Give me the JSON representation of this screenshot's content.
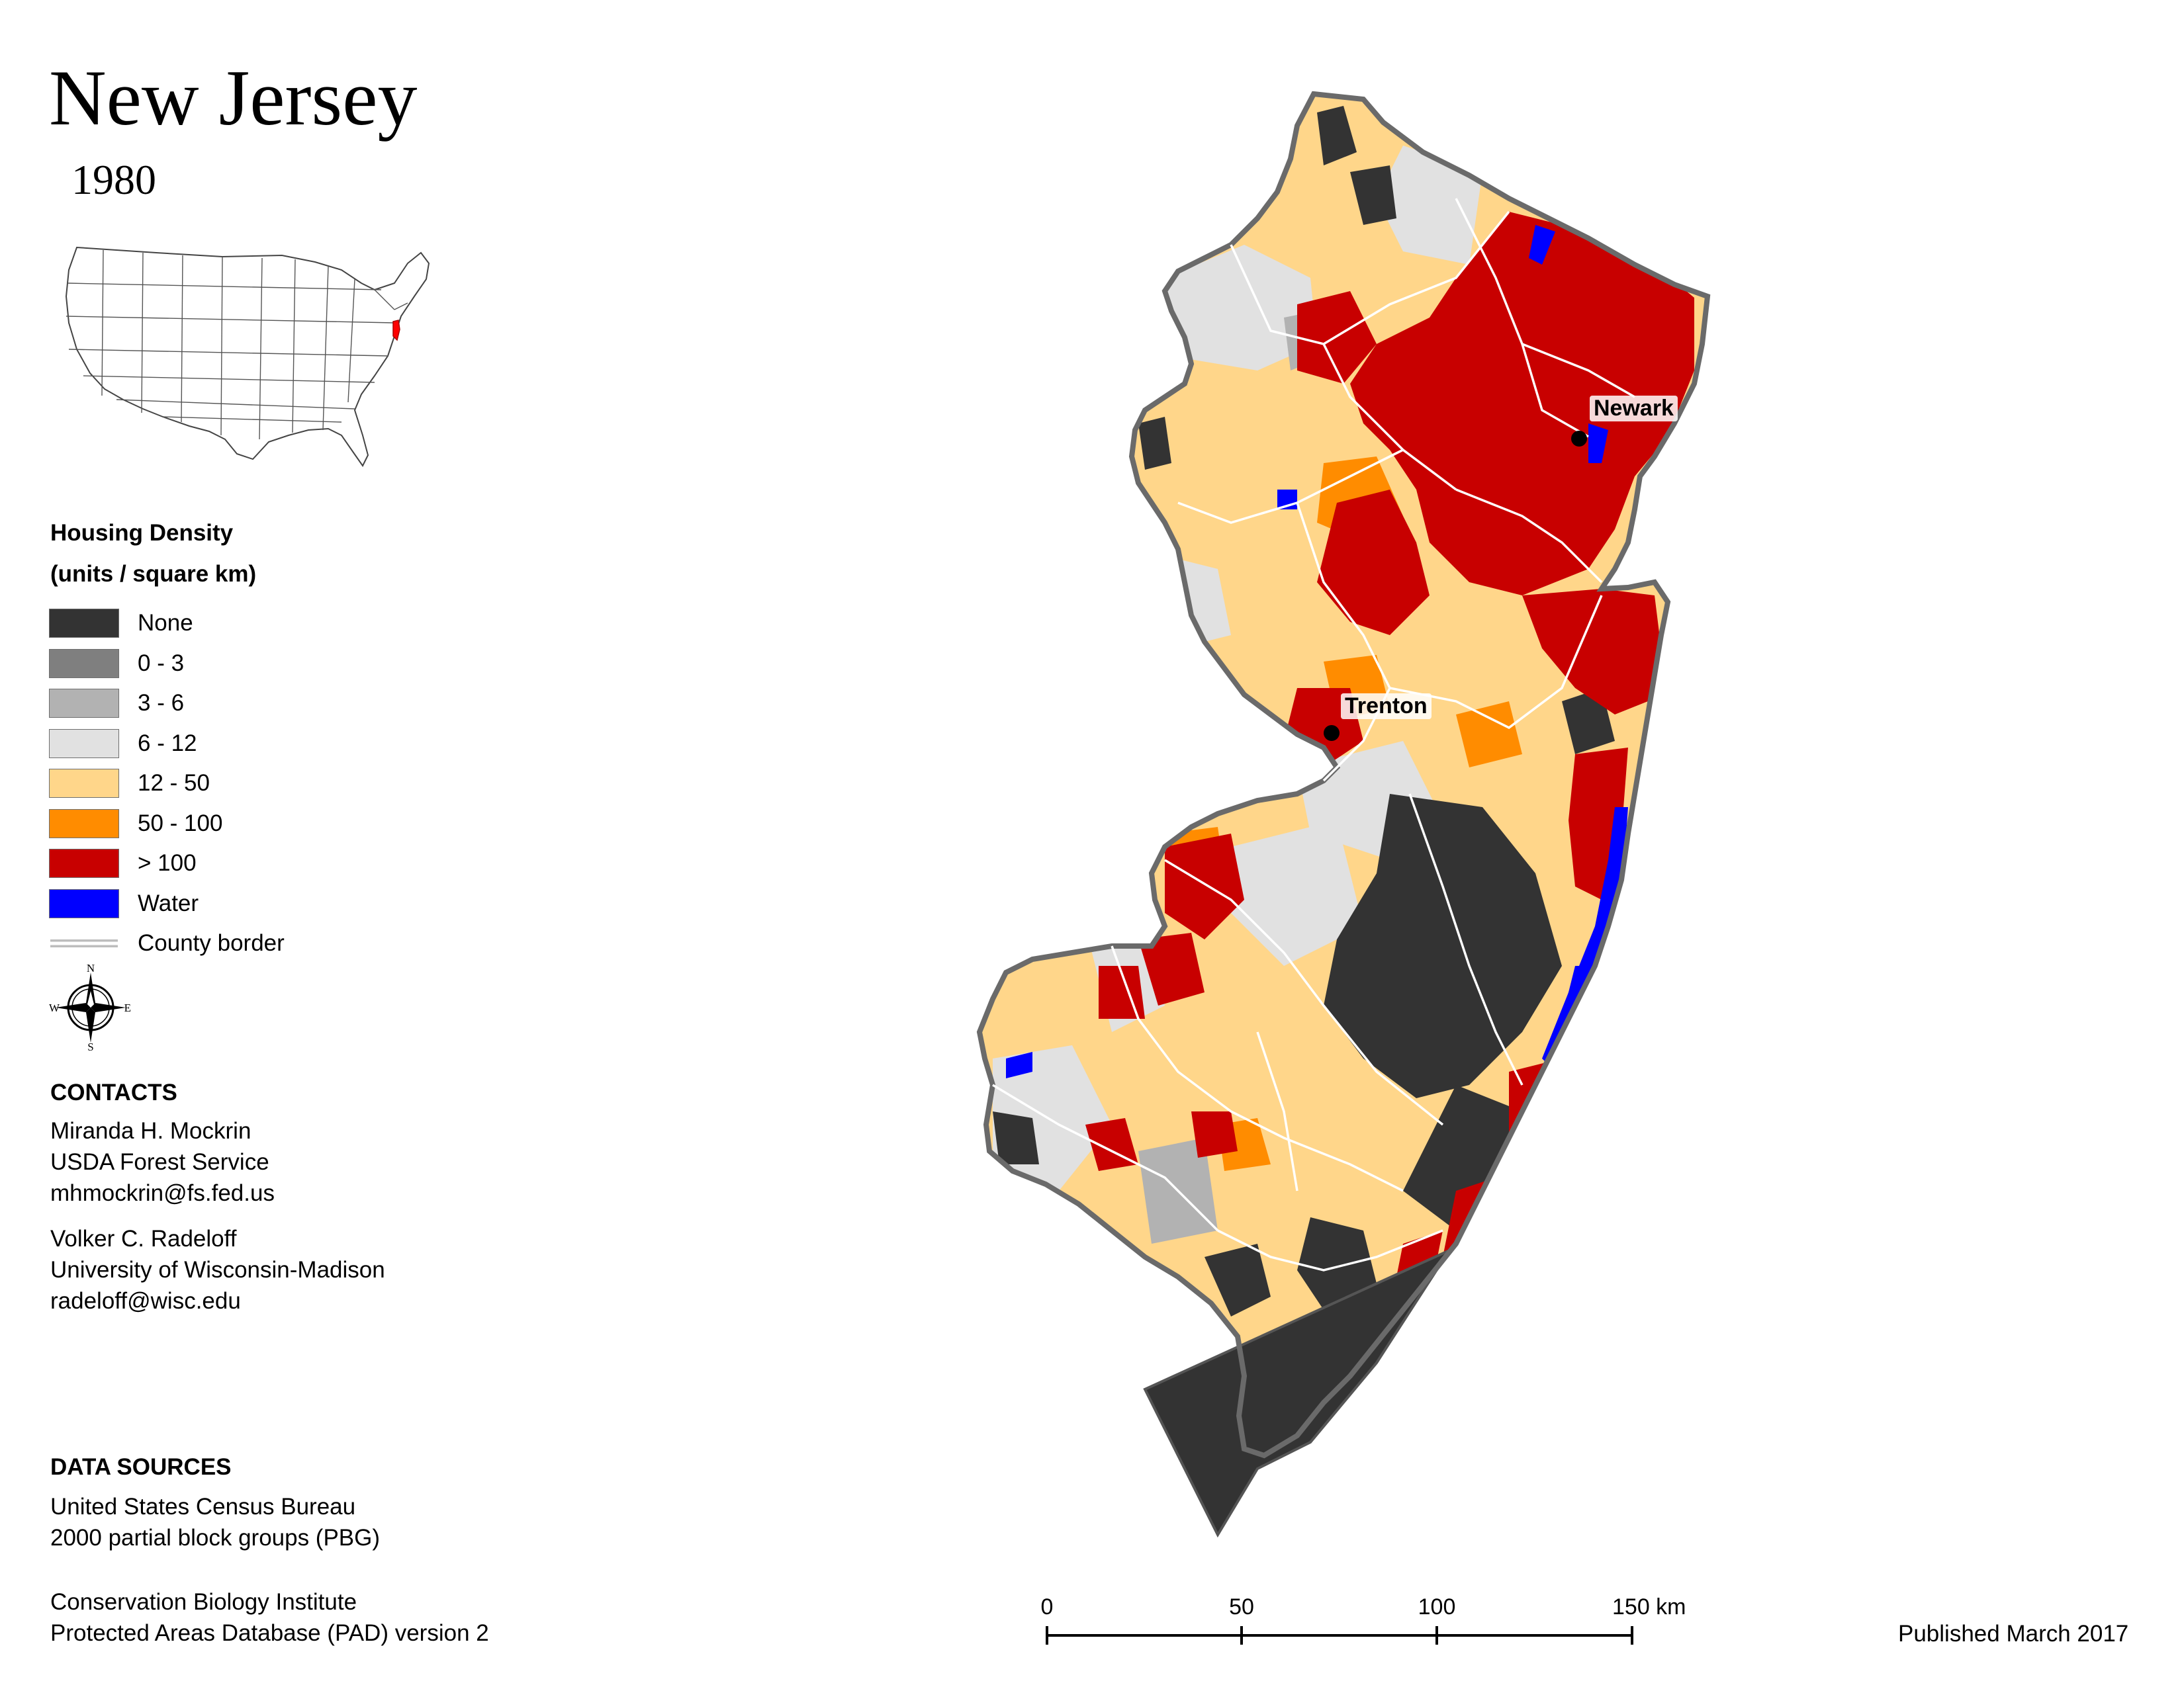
{
  "title": "New Jersey",
  "year": "1980",
  "legend": {
    "title_line1": "Housing Density",
    "title_line2": "(units / square km)",
    "items": [
      {
        "label": "None",
        "color": "#333333"
      },
      {
        "label": "0 - 3",
        "color": "#7f7f7f"
      },
      {
        "label": "3 - 6",
        "color": "#b2b2b2"
      },
      {
        "label": "6 - 12",
        "color": "#e1e1e1"
      },
      {
        "label": "12 - 50",
        "color": "#ffd68a"
      },
      {
        "label": "50 - 100",
        "color": "#ff8c00"
      },
      {
        "label": "> 100",
        "color": "#c80000"
      },
      {
        "label": "Water",
        "color": "#0000ff"
      }
    ],
    "county_border_label": "County border"
  },
  "compass": {
    "n": "N",
    "s": "S",
    "e": "E",
    "w": "W"
  },
  "contacts": {
    "heading": "CONTACTS",
    "person1": {
      "name": "Miranda H. Mockrin",
      "org": "USDA Forest Service",
      "email": "mhmockrin@fs.fed.us"
    },
    "person2": {
      "name": "Volker C. Radeloff",
      "org": "University of Wisconsin-Madison",
      "email": "radeloff@wisc.edu"
    }
  },
  "data_sources": {
    "heading": "DATA SOURCES",
    "source1_line1": "United States Census Bureau",
    "source1_line2": "2000 partial block groups (PBG)",
    "source2_line1": "Conservation Biology Institute",
    "source2_line2": "Protected Areas Database (PAD) version 2"
  },
  "scale_bar": {
    "ticks": [
      "0",
      "50",
      "100",
      "150 km"
    ]
  },
  "published": "Published March 2017",
  "cities": {
    "newark": "Newark",
    "trenton": "Trenton"
  }
}
